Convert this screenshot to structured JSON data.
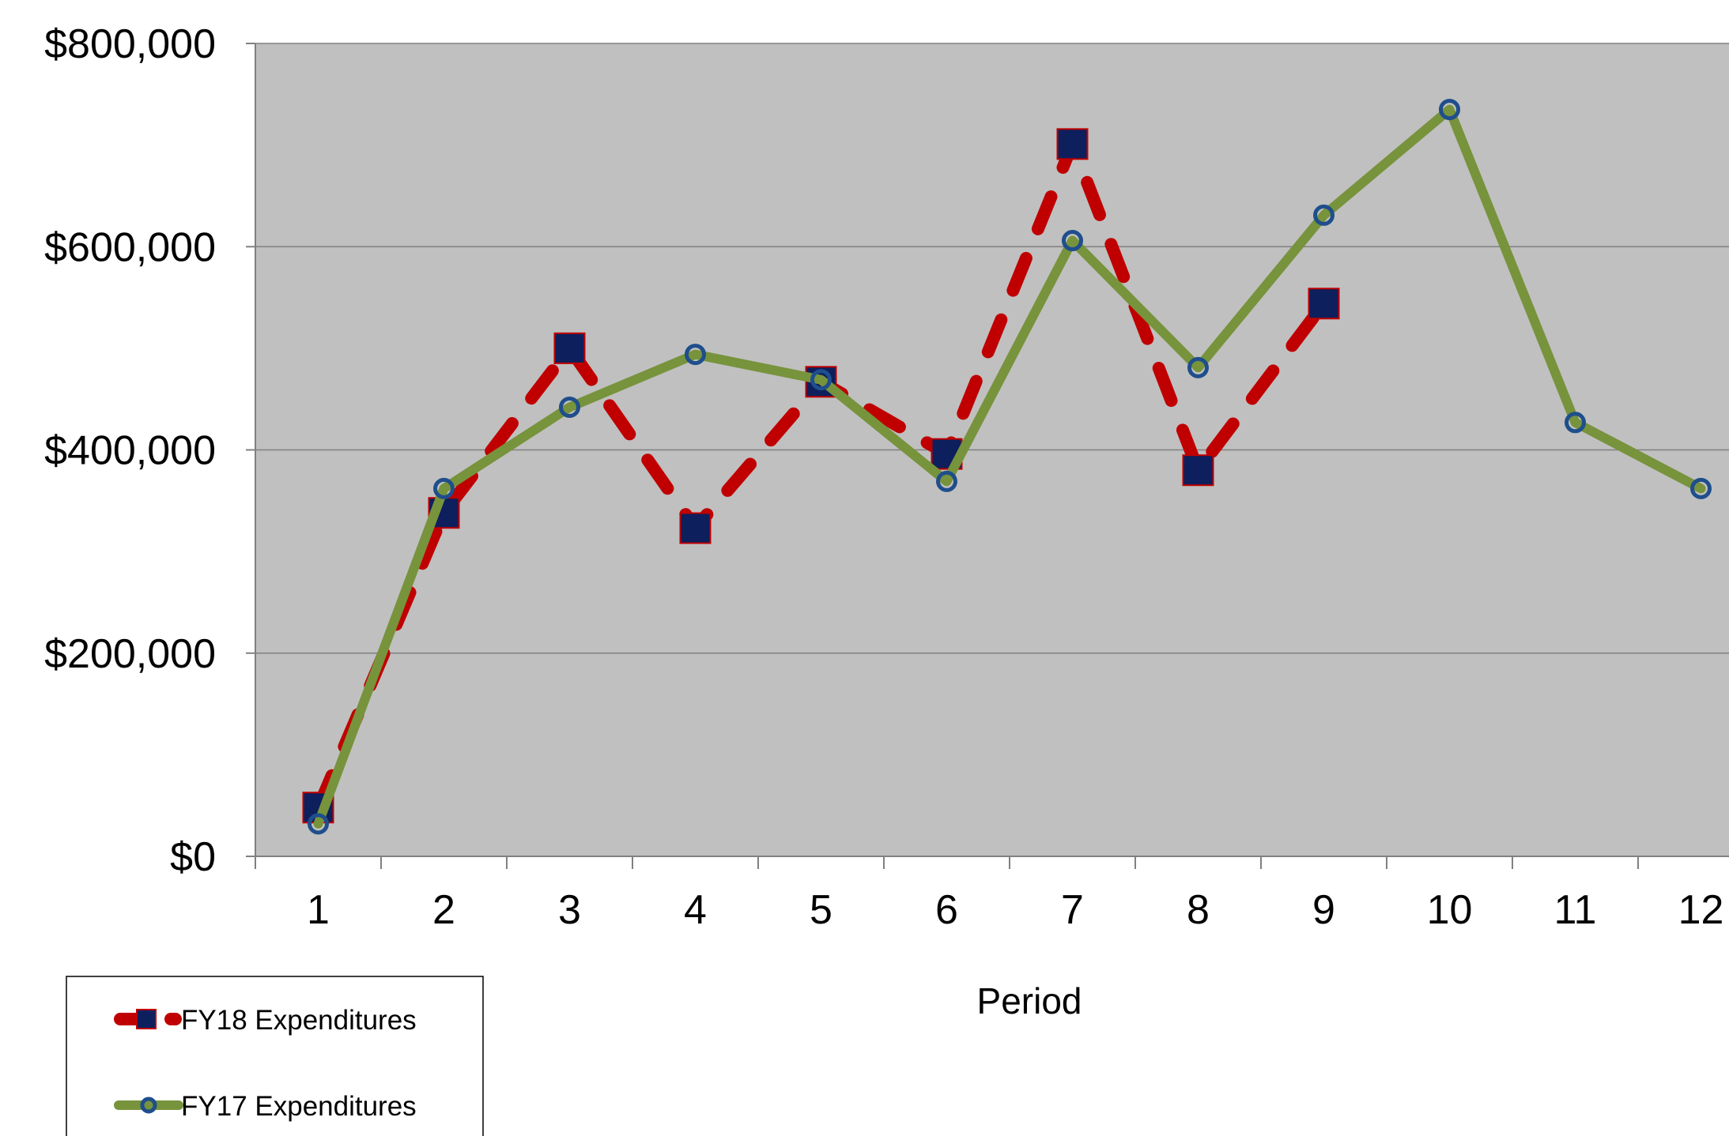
{
  "chart_data": {
    "type": "line",
    "title": "",
    "xlabel": "Period",
    "ylabel": "",
    "categories": [
      "1",
      "2",
      "3",
      "4",
      "5",
      "6",
      "7",
      "8",
      "9",
      "10",
      "11",
      "12"
    ],
    "x": [
      1,
      2,
      3,
      4,
      5,
      6,
      7,
      8,
      9,
      10,
      11,
      12
    ],
    "ylim": [
      0,
      800000
    ],
    "yticks": [
      {
        "value": 0,
        "label": "$0"
      },
      {
        "value": 200000,
        "label": "$200,000"
      },
      {
        "value": 400000,
        "label": "$400,000"
      },
      {
        "value": 600000,
        "label": "$600,000"
      },
      {
        "value": 800000,
        "label": "$800,000"
      }
    ],
    "grid": true,
    "legend_position": "bottom-left",
    "plot_background": "#c0c0c0",
    "series": [
      {
        "name": "FY18 Expenditures",
        "line_color": "#c00000",
        "line_style": "dashed",
        "marker": "square",
        "marker_color": "#0d1f5c",
        "values": [
          48000,
          338000,
          500000,
          323000,
          467000,
          396000,
          701000,
          380000,
          544000,
          null,
          null,
          null
        ]
      },
      {
        "name": "FY17 Expenditures",
        "line_color": "#77933c",
        "line_style": "solid",
        "marker": "circle",
        "marker_color": "#1f4e8c",
        "values": [
          32000,
          362000,
          442000,
          494000,
          469000,
          369000,
          606000,
          481000,
          631000,
          735000,
          427000,
          362000
        ]
      }
    ]
  }
}
